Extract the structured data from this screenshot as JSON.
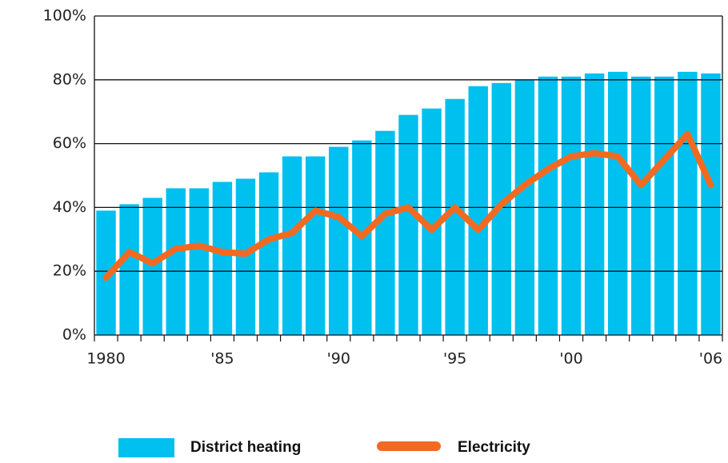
{
  "chart_data": {
    "type": "bar_line",
    "categories": [
      "1980",
      null,
      null,
      null,
      null,
      "'85",
      null,
      null,
      null,
      null,
      "'90",
      null,
      null,
      null,
      null,
      "'95",
      null,
      null,
      null,
      null,
      "'00",
      null,
      null,
      null,
      null,
      null,
      "'06"
    ],
    "series": [
      {
        "name": "District heating",
        "type": "bar",
        "color": "#00c0f0",
        "values": [
          39,
          41,
          43,
          46,
          46,
          48,
          49,
          51,
          56,
          56,
          59,
          61,
          64,
          69,
          71,
          74,
          78,
          79,
          80,
          81,
          81,
          82,
          82.5,
          81,
          81,
          82.5,
          82
        ]
      },
      {
        "name": "Electricity",
        "type": "line",
        "color": "#f26a21",
        "values": [
          18,
          26,
          22.5,
          27,
          28,
          26,
          25.5,
          30,
          32,
          39,
          37,
          31,
          38,
          40,
          33,
          40,
          33,
          41,
          47,
          52,
          56,
          57,
          56,
          47,
          55,
          63,
          47
        ]
      }
    ],
    "ylim": [
      0,
      100
    ],
    "yticks": [
      {
        "value": 0,
        "label": "0%"
      },
      {
        "value": 20,
        "label": "20%"
      },
      {
        "value": 40,
        "label": "40%"
      },
      {
        "value": 60,
        "label": "60%"
      },
      {
        "value": 80,
        "label": "80%"
      },
      {
        "value": 100,
        "label": "100%"
      }
    ],
    "grid": true
  }
}
